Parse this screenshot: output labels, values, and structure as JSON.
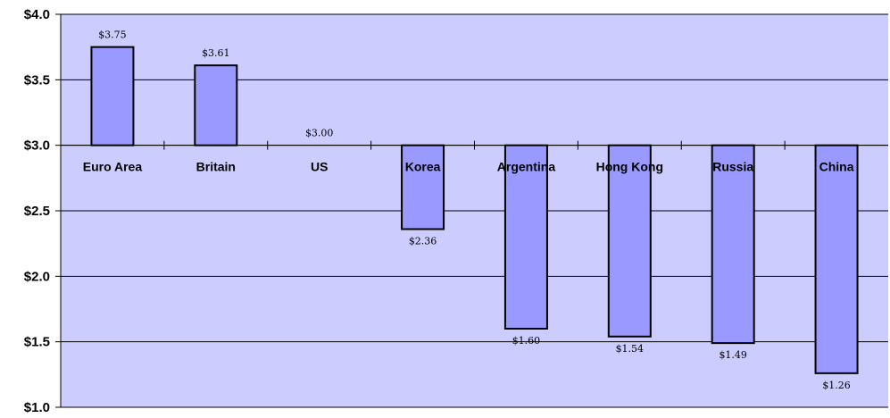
{
  "chart_data": {
    "type": "bar",
    "title": "",
    "xlabel": "",
    "ylabel": "",
    "baseline": 3.0,
    "ylim": [
      1.0,
      4.0
    ],
    "ytick_values": [
      1.0,
      1.5,
      2.0,
      2.5,
      3.0,
      3.5,
      4.0
    ],
    "ytick_labels": [
      "$1.0",
      "$1.5",
      "$2.0",
      "$2.5",
      "$3.0",
      "$3.5",
      "$4.0"
    ],
    "categories": [
      "Euro Area",
      "Britain",
      "US",
      "Korea",
      "Argentina",
      "Hong Kong",
      "Russia",
      "China"
    ],
    "values": [
      3.75,
      3.61,
      3.0,
      2.36,
      1.6,
      1.54,
      1.49,
      1.26
    ],
    "data_labels": [
      "$3.75",
      "$3.61",
      "$3.00",
      "$2.36",
      "$1.60",
      "$1.54",
      "$1.49",
      "$1.26"
    ],
    "grid": true,
    "legend": "none",
    "colors": {
      "plot_background": "#ccccff",
      "bar_fill": "#9999ff",
      "bar_stroke": "#000000",
      "gridline": "#000000"
    }
  }
}
